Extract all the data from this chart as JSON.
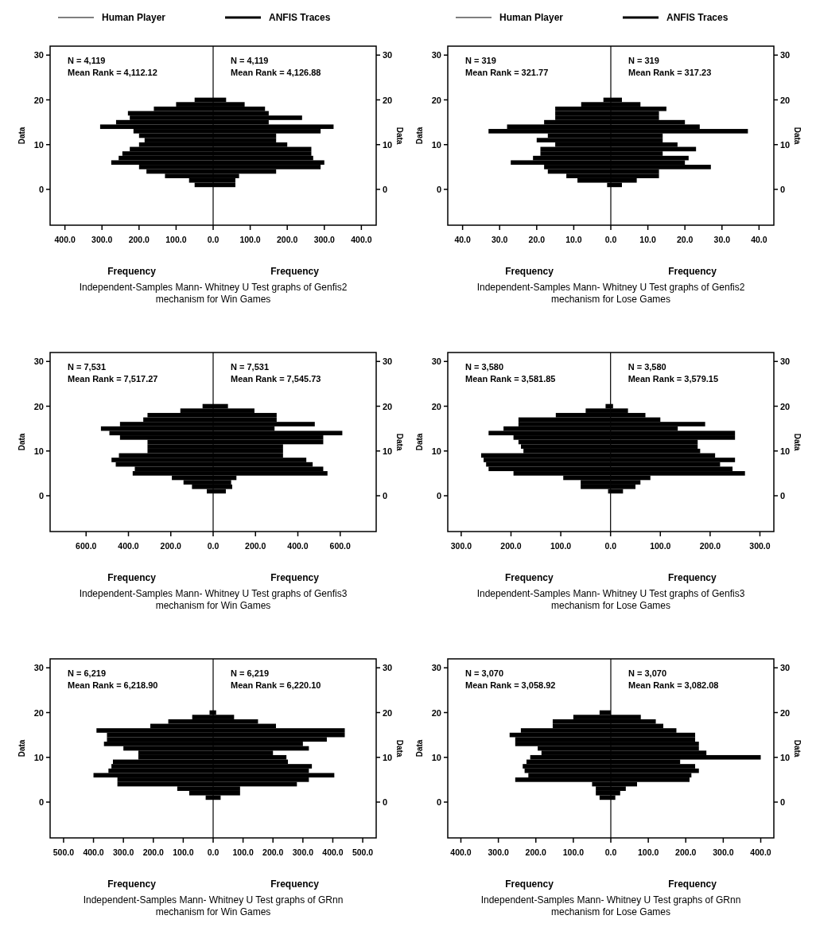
{
  "chart_data": [
    {
      "type": "bar",
      "orientation": "horizontal",
      "stacked": true,
      "title": "Independent-Samples Mann- Whitney U Test graphs of Genfis2 mechanism for Win Games",
      "xlabel": "Frequency",
      "ylabel": "Data",
      "y2label": "Data",
      "legend": "top",
      "annotations": [
        "N = 4,119",
        "Mean Rank = 4,112.12",
        "N = 4,119",
        "Mean Rank = 4,126.88"
      ],
      "x": [
        1,
        2,
        3,
        4,
        5,
        6,
        7,
        8,
        9,
        10,
        11,
        12,
        13,
        14,
        15,
        16,
        17,
        18,
        19,
        20
      ],
      "series": [
        {
          "name": "Human Player",
          "color": "#000000",
          "values": [
            -50,
            -65,
            -130,
            -180,
            -200,
            -275,
            -255,
            -245,
            -225,
            -200,
            -185,
            -200,
            -215,
            -305,
            -262,
            -225,
            -230,
            -160,
            -100,
            -50
          ]
        },
        {
          "name": "ANFIS Traces",
          "color": "#000000",
          "values": [
            60,
            60,
            70,
            170,
            290,
            300,
            270,
            265,
            265,
            200,
            170,
            170,
            290,
            325,
            150,
            240,
            150,
            140,
            85,
            35
          ]
        }
      ],
      "xlim": [
        -440,
        440
      ],
      "xticks": [
        {
          "value": -400,
          "label": "400.0"
        },
        {
          "value": -300,
          "label": "300.0"
        },
        {
          "value": -200,
          "label": "200.0"
        },
        {
          "value": -100,
          "label": "100.0"
        },
        {
          "value": 0,
          "label": "0.0"
        },
        {
          "value": 100,
          "label": "100.0"
        },
        {
          "value": 200,
          "label": "200.0"
        },
        {
          "value": 300,
          "label": "300.0"
        },
        {
          "value": 400,
          "label": "400.0"
        }
      ],
      "ylim": [
        -8,
        32
      ],
      "yticks": [
        0,
        10,
        20,
        30
      ],
      "y2lim": [
        -8,
        32
      ],
      "y2ticks": [
        0,
        10,
        20,
        30
      ],
      "ref_lines": [
        {
          "axis": "x",
          "value": 0
        }
      ]
    },
    {
      "type": "bar",
      "orientation": "horizontal",
      "stacked": true,
      "title": "Independent-Samples Mann- Whitney U Test graphs of Genfis2 mechanism for Lose Games",
      "xlabel": "Frequency",
      "ylabel": "Data",
      "y2label": "Data",
      "legend": "top",
      "annotations": [
        "N = 319",
        "Mean Rank = 321.77",
        "N = 319",
        "Mean Rank = 317.23"
      ],
      "x": [
        1,
        2,
        3,
        4,
        5,
        6,
        7,
        8,
        9,
        10,
        11,
        12,
        13,
        14,
        15,
        16,
        17,
        18,
        19,
        20
      ],
      "series": [
        {
          "name": "Human Player",
          "color": "#000000",
          "values": [
            -1,
            -9,
            -12,
            -17,
            -18,
            -27,
            -21,
            -19,
            -19,
            -15,
            -20,
            -17,
            -33,
            -28,
            -18,
            -15,
            -15,
            -15,
            -8,
            -2
          ]
        },
        {
          "name": "ANFIS Traces",
          "color": "#000000",
          "values": [
            3,
            7,
            13,
            13,
            27,
            20,
            21,
            14,
            23,
            18,
            14,
            14,
            37,
            24,
            20,
            13,
            13,
            15,
            8,
            3
          ]
        }
      ],
      "xlim": [
        -44,
        44
      ],
      "xticks": [
        {
          "value": -40,
          "label": "40.0"
        },
        {
          "value": -30,
          "label": "30.0"
        },
        {
          "value": -20,
          "label": "20.0"
        },
        {
          "value": -10,
          "label": "10.0"
        },
        {
          "value": 0,
          "label": "0.0"
        },
        {
          "value": 10,
          "label": "10.0"
        },
        {
          "value": 20,
          "label": "20.0"
        },
        {
          "value": 30,
          "label": "30.0"
        },
        {
          "value": 40,
          "label": "40.0"
        }
      ],
      "ylim": [
        -8,
        32
      ],
      "yticks": [
        0,
        10,
        20,
        30
      ],
      "y2lim": [
        -8,
        32
      ],
      "y2ticks": [
        0,
        10,
        20,
        30
      ],
      "ref_lines": [
        {
          "axis": "x",
          "value": 0
        }
      ]
    },
    {
      "type": "bar",
      "orientation": "horizontal",
      "stacked": true,
      "title": "Independent-Samples Mann- Whitney U Test graphs of Genfis3 mechanism for Win Games",
      "xlabel": "Frequency",
      "ylabel": "Data",
      "y2label": "Data",
      "annotations": [
        "N = 7,531",
        "Mean Rank = 7,517.27",
        "N = 7,531",
        "Mean Rank = 7,545.73"
      ],
      "x": [
        1,
        2,
        3,
        4,
        5,
        6,
        7,
        8,
        9,
        10,
        11,
        12,
        13,
        14,
        15,
        16,
        17,
        18,
        19,
        20
      ],
      "series": [
        {
          "color": "#000000",
          "values": [
            -30,
            -100,
            -140,
            -195,
            -380,
            -370,
            -460,
            -480,
            -445,
            -310,
            -310,
            -310,
            -440,
            -490,
            -530,
            -440,
            -330,
            -310,
            -155,
            -50
          ]
        },
        {
          "color": "#000000",
          "values": [
            60,
            90,
            85,
            110,
            540,
            520,
            470,
            440,
            330,
            330,
            330,
            520,
            520,
            610,
            290,
            480,
            300,
            300,
            195,
            70
          ]
        }
      ],
      "xlim": [
        -770,
        770
      ],
      "xticks": [
        {
          "value": -600,
          "label": "600.0"
        },
        {
          "value": -400,
          "label": "400.0"
        },
        {
          "value": -200,
          "label": "200.0"
        },
        {
          "value": 0,
          "label": "0.0"
        },
        {
          "value": 200,
          "label": "200.0"
        },
        {
          "value": 400,
          "label": "400.0"
        },
        {
          "value": 600,
          "label": "600.0"
        }
      ],
      "ylim": [
        -8,
        32
      ],
      "yticks": [
        0,
        10,
        20,
        30
      ],
      "y2lim": [
        -8,
        32
      ],
      "y2ticks": [
        0,
        10,
        20,
        30
      ],
      "ref_lines": [
        {
          "axis": "x",
          "value": 0
        }
      ]
    },
    {
      "type": "bar",
      "orientation": "horizontal",
      "stacked": true,
      "title": "Independent-Samples Mann- Whitney U Test graphs of Genfis3 mechanism for Lose Games",
      "xlabel": "Frequency",
      "ylabel": "Data",
      "y2label": "Data",
      "annotations": [
        "N = 3,580",
        "Mean Rank = 3,581.85",
        "N = 3,580",
        "Mean Rank = 3,579.15"
      ],
      "x": [
        1,
        2,
        3,
        4,
        5,
        6,
        7,
        8,
        9,
        10,
        11,
        12,
        13,
        14,
        15,
        16,
        17,
        18,
        19,
        20
      ],
      "series": [
        {
          "color": "#000000",
          "values": [
            -5,
            -60,
            -60,
            -95,
            -195,
            -245,
            -250,
            -255,
            -260,
            -175,
            -180,
            -185,
            -195,
            -245,
            -215,
            -185,
            -185,
            -110,
            -50,
            -10
          ]
        },
        {
          "color": "#000000",
          "values": [
            25,
            50,
            60,
            80,
            270,
            245,
            220,
            250,
            210,
            180,
            175,
            175,
            250,
            250,
            135,
            190,
            100,
            70,
            35,
            5
          ]
        }
      ],
      "xlim": [
        -327,
        328
      ],
      "xticks": [
        {
          "value": -300,
          "label": "300.0"
        },
        {
          "value": -200,
          "label": "200.0"
        },
        {
          "value": -100,
          "label": "100.0"
        },
        {
          "value": 0,
          "label": "0.0"
        },
        {
          "value": 100,
          "label": "100.0"
        },
        {
          "value": 200,
          "label": "200.0"
        },
        {
          "value": 300,
          "label": "300.0"
        }
      ],
      "ylim": [
        -8,
        32
      ],
      "yticks": [
        0,
        10,
        20,
        30
      ],
      "y2lim": [
        -8,
        32
      ],
      "y2ticks": [
        0,
        10,
        20,
        30
      ],
      "ref_lines": [
        {
          "axis": "x",
          "value": 0
        }
      ]
    },
    {
      "type": "bar",
      "orientation": "horizontal",
      "stacked": true,
      "title": "Independent-Samples Mann- Whitney U Test graphs of GRnn mechanism for Win Games",
      "xlabel": "Frequency",
      "ylabel": "Data",
      "y2label": "Data",
      "annotations": [
        "N = 6,219",
        "Mean Rank = 6,218.90",
        "N = 6,219",
        "Mean Rank = 6,220.10"
      ],
      "x": [
        1,
        2,
        3,
        4,
        5,
        6,
        7,
        8,
        9,
        10,
        11,
        12,
        13,
        14,
        15,
        16,
        17,
        18,
        19,
        20
      ],
      "series": [
        {
          "color": "#000000",
          "values": [
            -25,
            -80,
            -120,
            -320,
            -320,
            -400,
            -350,
            -340,
            -335,
            -250,
            -250,
            -300,
            -365,
            -355,
            -355,
            -390,
            -210,
            -150,
            -70,
            -12
          ]
        },
        {
          "color": "#000000",
          "values": [
            25,
            90,
            90,
            280,
            320,
            405,
            320,
            330,
            250,
            245,
            200,
            320,
            300,
            380,
            440,
            440,
            210,
            150,
            70,
            10
          ]
        }
      ],
      "xlim": [
        -545,
        545
      ],
      "xticks": [
        {
          "value": -500,
          "label": "500.0"
        },
        {
          "value": -400,
          "label": "400.0"
        },
        {
          "value": -300,
          "label": "300.0"
        },
        {
          "value": -200,
          "label": "200.0"
        },
        {
          "value": -100,
          "label": "100.0"
        },
        {
          "value": 0,
          "label": "0.0"
        },
        {
          "value": 100,
          "label": "100.0"
        },
        {
          "value": 200,
          "label": "200.0"
        },
        {
          "value": 300,
          "label": "300.0"
        },
        {
          "value": 400,
          "label": "400.0"
        },
        {
          "value": 500,
          "label": "500.0"
        }
      ],
      "ylim": [
        -8,
        32
      ],
      "yticks": [
        0,
        10,
        20,
        30
      ],
      "y2lim": [
        -8,
        32
      ],
      "y2ticks": [
        0,
        10,
        20,
        30
      ],
      "ref_lines": [
        {
          "axis": "x",
          "value": 0
        }
      ]
    },
    {
      "type": "bar",
      "orientation": "horizontal",
      "stacked": true,
      "title": "Independent-Samples Mann- Whitney U Test graphs of GRnn mechanism for Lose Games",
      "xlabel": "Frequency",
      "ylabel": "Data",
      "y2label": "Data",
      "annotations": [
        "N = 3,070",
        "Mean Rank = 3,058.92",
        "N = 3,070",
        "Mean Rank = 3,082.08"
      ],
      "x": [
        1,
        2,
        3,
        4,
        5,
        6,
        7,
        8,
        9,
        10,
        11,
        12,
        13,
        14,
        15,
        16,
        17,
        18,
        19,
        20
      ],
      "series": [
        {
          "color": "#000000",
          "values": [
            -30,
            -40,
            -40,
            -50,
            -255,
            -220,
            -230,
            -235,
            -225,
            -215,
            -185,
            -195,
            -255,
            -255,
            -270,
            -240,
            -155,
            -155,
            -100,
            -30
          ]
        },
        {
          "color": "#000000",
          "values": [
            12,
            25,
            40,
            70,
            210,
            215,
            235,
            225,
            185,
            400,
            255,
            235,
            235,
            225,
            225,
            175,
            140,
            120,
            80,
            0
          ]
        }
      ],
      "xlim": [
        -435,
        435
      ],
      "xticks": [
        {
          "value": -400,
          "label": "400.0"
        },
        {
          "value": -300,
          "label": "300.0"
        },
        {
          "value": -200,
          "label": "200.0"
        },
        {
          "value": -100,
          "label": "100.0"
        },
        {
          "value": 0,
          "label": "0.0"
        },
        {
          "value": 100,
          "label": "100.0"
        },
        {
          "value": 200,
          "label": "200.0"
        },
        {
          "value": 300,
          "label": "300.0"
        },
        {
          "value": 400,
          "label": "400.0"
        }
      ],
      "ylim": [
        -8,
        32
      ],
      "yticks": [
        0,
        10,
        20,
        30
      ],
      "y2lim": [
        -8,
        32
      ],
      "y2ticks": [
        0,
        10,
        20,
        30
      ],
      "ref_lines": [
        {
          "axis": "x",
          "value": 0
        }
      ]
    }
  ]
}
